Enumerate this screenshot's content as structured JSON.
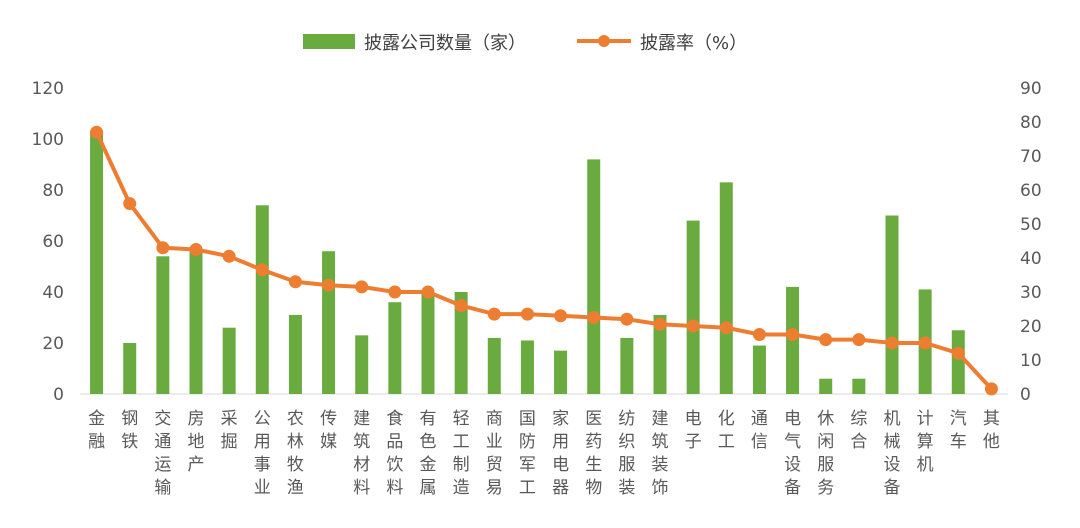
{
  "chart_data": {
    "type": "bar",
    "categories": [
      "金融",
      "钢铁",
      "交通运输",
      "房地产",
      "采掘",
      "公用事业",
      "农林牧渔",
      "传媒",
      "建筑材料",
      "食品饮料",
      "有色金属",
      "轻工制造",
      "商业贸易",
      "国防军工",
      "家用电器",
      "医药生物",
      "纺织服装",
      "建筑装饰",
      "电子",
      "化工",
      "通信",
      "电气设备",
      "休闲服务",
      "综合",
      "机械设备",
      "计算机",
      "汽车",
      "其他"
    ],
    "series": [
      {
        "name": "披露公司数量（家）",
        "type": "bar",
        "axis": "left",
        "color": "#6aab3f",
        "values": [
          103,
          20,
          54,
          56,
          26,
          74,
          31,
          56,
          23,
          36,
          40,
          40,
          22,
          21,
          17,
          92,
          22,
          31,
          68,
          83,
          19,
          42,
          6,
          6,
          70,
          41,
          25,
          0
        ]
      },
      {
        "name": "披露率（%）",
        "type": "line",
        "axis": "right",
        "color": "#ed7d31",
        "values": [
          77,
          56,
          43,
          42.5,
          40.5,
          36.5,
          33,
          32,
          31.5,
          30,
          30,
          26,
          23.5,
          23.5,
          23,
          22.5,
          22,
          20.5,
          20,
          19.5,
          17.5,
          17.5,
          16,
          16,
          15,
          15,
          12,
          1.5
        ]
      }
    ],
    "y_left": {
      "min": 0,
      "max": 120,
      "ticks": [
        "0",
        "20",
        "40",
        "60",
        "80",
        "100",
        "120"
      ]
    },
    "y_right": {
      "min": 0,
      "max": 90,
      "ticks": [
        "0",
        "10",
        "20",
        "30",
        "40",
        "50",
        "60",
        "70",
        "80",
        "90"
      ]
    },
    "legend": {
      "position": "top",
      "items": [
        "披露公司数量（家）",
        "披露率（%）"
      ]
    },
    "grid": false
  }
}
